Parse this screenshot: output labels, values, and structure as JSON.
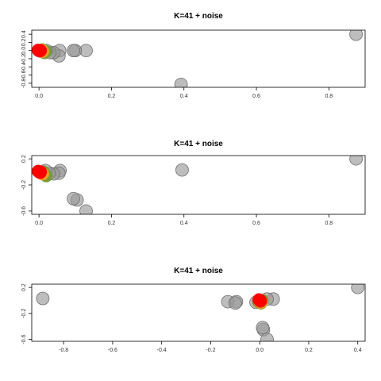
{
  "chart_data": [
    {
      "type": "scatter",
      "title": "K=41 + noise",
      "xlabel": "",
      "ylabel": "",
      "xlim": [
        -0.02,
        0.9
      ],
      "ylim": [
        -0.9,
        0.5
      ],
      "x_ticks": [
        0.0,
        0.2,
        0.4,
        0.6,
        0.8
      ],
      "x_tick_labels": [
        "0.0",
        "0.2",
        "0.4",
        "0.6",
        "0.8"
      ],
      "y_ticks": [
        0.4,
        0.2,
        0.0,
        -0.2,
        -0.4,
        -0.6,
        -0.8
      ],
      "y_tick_labels": [
        "0.4",
        "0.2",
        "0.0",
        "-0.2",
        "-0.4",
        "-0.6",
        "-0.8"
      ],
      "grid": false,
      "colors": {
        "noise": "#9a9a9a",
        "green": "#7c9a3c",
        "orange": "#e8a020",
        "red": "#ff0000"
      },
      "series": [
        {
          "group": "noise",
          "points": [
            [
              0.875,
              0.4
            ],
            [
              0.392,
              -0.83
            ],
            [
              0.13,
              0.0
            ],
            [
              0.1,
              0.0
            ],
            [
              0.095,
              0.0
            ],
            [
              0.057,
              0.0
            ],
            [
              0.055,
              -0.13
            ],
            [
              0.04,
              -0.05
            ],
            [
              0.03,
              -0.05
            ],
            [
              0.02,
              0.0
            ],
            [
              0.012,
              0.0
            ]
          ]
        },
        {
          "group": "green",
          "points": [
            [
              0.018,
              -0.02
            ],
            [
              0.01,
              0.02
            ],
            [
              0.015,
              -0.05
            ]
          ]
        },
        {
          "group": "orange",
          "points": [
            [
              0.008,
              0.01
            ],
            [
              0.01,
              -0.02
            ]
          ]
        },
        {
          "group": "red",
          "points": [
            [
              0.0,
              0.0
            ],
            [
              -0.002,
              0.01
            ],
            [
              0.002,
              -0.01
            ],
            [
              0.004,
              0.0
            ]
          ]
        }
      ]
    },
    {
      "type": "scatter",
      "title": "K=41 + noise",
      "xlabel": "",
      "ylabel": "",
      "xlim": [
        -0.02,
        0.9
      ],
      "ylim": [
        -0.65,
        0.25
      ],
      "x_ticks": [
        0.0,
        0.2,
        0.4,
        0.6,
        0.8
      ],
      "x_tick_labels": [
        "0.0",
        "0.2",
        "0.4",
        "0.6",
        "0.8"
      ],
      "y_ticks": [
        0.2,
        -0.2,
        -0.6
      ],
      "y_tick_labels": [
        "0.2",
        "-0.2",
        "-0.6"
      ],
      "grid": false,
      "colors": {
        "noise": "#9a9a9a",
        "green": "#7c9a3c",
        "orange": "#e8a020",
        "red": "#ff0000"
      },
      "series": [
        {
          "group": "noise",
          "points": [
            [
              0.875,
              0.2
            ],
            [
              0.395,
              0.03
            ],
            [
              0.13,
              -0.6
            ],
            [
              0.105,
              -0.43
            ],
            [
              0.095,
              -0.41
            ],
            [
              0.058,
              0.02
            ],
            [
              0.055,
              -0.02
            ],
            [
              0.04,
              -0.03
            ],
            [
              0.028,
              -0.02
            ],
            [
              0.018,
              0.02
            ],
            [
              0.01,
              -0.02
            ]
          ]
        },
        {
          "group": "green",
          "points": [
            [
              0.015,
              -0.03
            ],
            [
              0.012,
              0.0
            ],
            [
              0.02,
              -0.06
            ]
          ]
        },
        {
          "group": "orange",
          "points": [
            [
              0.006,
              -0.01
            ],
            [
              0.01,
              -0.03
            ]
          ]
        },
        {
          "group": "red",
          "points": [
            [
              0.0,
              0.0
            ],
            [
              -0.002,
              0.01
            ],
            [
              0.003,
              -0.01
            ],
            [
              0.004,
              0.0
            ]
          ]
        }
      ]
    },
    {
      "type": "scatter",
      "title": "K=41 + noise",
      "xlabel": "",
      "ylabel": "",
      "xlim": [
        -0.93,
        0.43
      ],
      "ylim": [
        -0.63,
        0.25
      ],
      "x_ticks": [
        -0.8,
        -0.6,
        -0.4,
        -0.2,
        0.0,
        0.2,
        0.4
      ],
      "x_tick_labels": [
        "-0.8",
        "-0.6",
        "-0.4",
        "-0.2",
        "0.0",
        "0.2",
        "0.4"
      ],
      "y_ticks": [
        0.2,
        -0.2,
        -0.6
      ],
      "y_tick_labels": [
        "0.2",
        "-0.2",
        "-0.6"
      ],
      "grid": false,
      "colors": {
        "noise": "#9a9a9a",
        "green": "#7c9a3c",
        "orange": "#e8a020",
        "red": "#ff0000"
      },
      "series": [
        {
          "group": "noise",
          "points": [
            [
              -0.885,
              0.03
            ],
            [
              0.4,
              0.2
            ],
            [
              -0.13,
              -0.02
            ],
            [
              -0.095,
              -0.02
            ],
            [
              -0.1,
              -0.04
            ],
            [
              0.055,
              0.02
            ],
            [
              0.03,
              0.02
            ],
            [
              0.015,
              -0.45
            ],
            [
              0.012,
              -0.42
            ],
            [
              0.03,
              -0.6
            ],
            [
              -0.015,
              -0.03
            ]
          ]
        },
        {
          "group": "green",
          "points": [
            [
              0.005,
              -0.04
            ],
            [
              -0.005,
              -0.02
            ],
            [
              0.01,
              0.0
            ]
          ]
        },
        {
          "group": "orange",
          "points": [
            [
              0.0,
              -0.01
            ],
            [
              0.005,
              -0.03
            ]
          ]
        },
        {
          "group": "red",
          "points": [
            [
              0.0,
              0.0
            ],
            [
              -0.003,
              0.01
            ],
            [
              0.003,
              -0.01
            ],
            [
              0.002,
              0.0
            ]
          ]
        }
      ]
    }
  ]
}
